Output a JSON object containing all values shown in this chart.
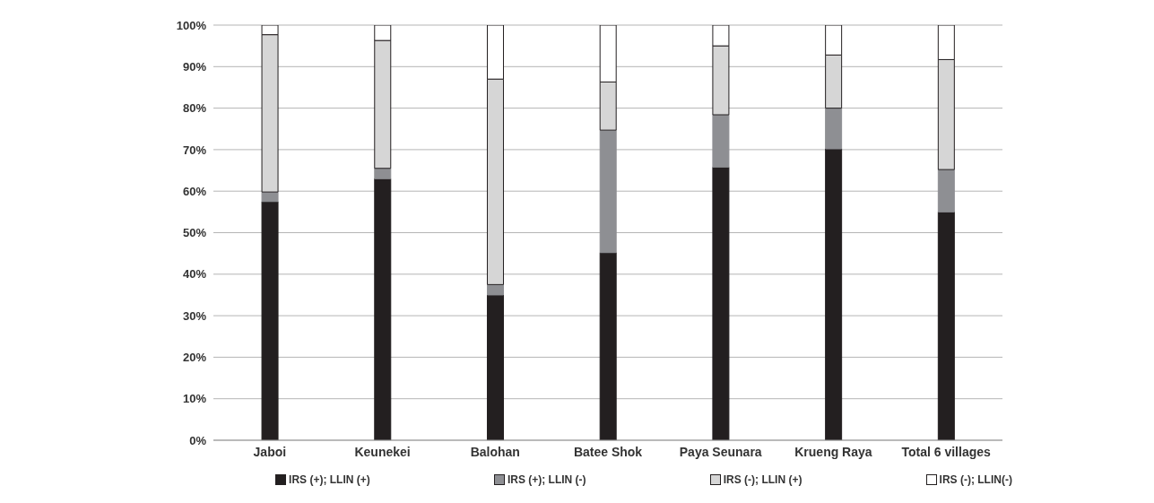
{
  "chart_data": {
    "type": "bar",
    "stacked": true,
    "categories": [
      "Jaboi",
      "Keunekei",
      "Balohan",
      "Batee Shok",
      "Paya Seunara",
      "Krueng Raya",
      "Total 6 villages"
    ],
    "series": [
      {
        "name": "IRS (+); LLIN (+)",
        "color": "#231f20",
        "values": [
          57.5,
          63,
          35,
          45.2,
          65.8,
          70.2,
          55
        ]
      },
      {
        "name": "IRS (+); LLIN (-)",
        "color": "#8e8f93",
        "values": [
          2.3,
          2.5,
          2.5,
          29.5,
          12.6,
          9.8,
          10.2
        ]
      },
      {
        "name": "IRS (-); LLIN (+)",
        "color": "#d6d6d6",
        "values": [
          37.9,
          30.8,
          49.5,
          11.6,
          16.6,
          12.8,
          26.5
        ]
      },
      {
        "name": "IRS (-); LLIN(-)",
        "color": "#ffffff",
        "values": [
          2.3,
          3.7,
          13,
          13.7,
          5,
          7.2,
          8.3
        ]
      }
    ],
    "ylim": [
      0,
      100
    ],
    "yticks": [
      {
        "value": 0,
        "label": "0%"
      },
      {
        "value": 10,
        "label": "10%"
      },
      {
        "value": 20,
        "label": "20%"
      },
      {
        "value": 30,
        "label": "30%"
      },
      {
        "value": 40,
        "label": "40%"
      },
      {
        "value": 50,
        "label": "50%"
      },
      {
        "value": 60,
        "label": "60%"
      },
      {
        "value": 70,
        "label": "70%"
      },
      {
        "value": 80,
        "label": "80%"
      },
      {
        "value": 90,
        "label": "90%"
      },
      {
        "value": 100,
        "label": "100%"
      }
    ],
    "grid": "y",
    "legend": "bottom"
  }
}
